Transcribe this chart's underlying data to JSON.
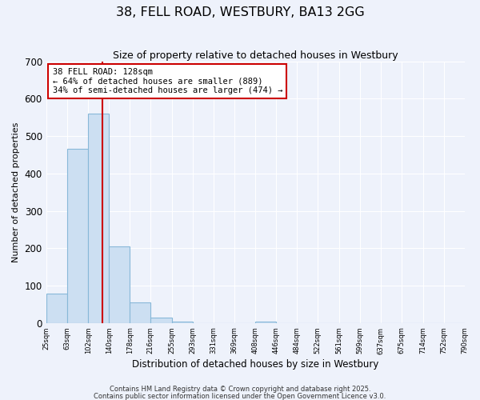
{
  "title": "38, FELL ROAD, WESTBURY, BA13 2GG",
  "subtitle": "Size of property relative to detached houses in Westbury",
  "xlabel": "Distribution of detached houses by size in Westbury",
  "ylabel": "Number of detached properties",
  "bar_edges": [
    25,
    63,
    102,
    140,
    178,
    216,
    255,
    293,
    331,
    369,
    408,
    446,
    484,
    522,
    561,
    599,
    637,
    675,
    714,
    752,
    790
  ],
  "bar_heights": [
    78,
    465,
    560,
    205,
    55,
    14,
    3,
    0,
    0,
    0,
    3,
    0,
    0,
    0,
    0,
    0,
    0,
    0,
    0,
    0
  ],
  "bar_color": "#ccdff2",
  "bar_edge_color": "#88b8d8",
  "property_line_x": 128,
  "property_line_color": "#cc0000",
  "annotation_line1": "38 FELL ROAD: 128sqm",
  "annotation_line2": "← 64% of detached houses are smaller (889)",
  "annotation_line3": "34% of semi-detached houses are larger (474) →",
  "annotation_box_color": "#ffffff",
  "annotation_box_edge": "#cc0000",
  "ylim": [
    0,
    700
  ],
  "yticks": [
    0,
    100,
    200,
    300,
    400,
    500,
    600,
    700
  ],
  "tick_labels": [
    "25sqm",
    "63sqm",
    "102sqm",
    "140sqm",
    "178sqm",
    "216sqm",
    "255sqm",
    "293sqm",
    "331sqm",
    "369sqm",
    "408sqm",
    "446sqm",
    "484sqm",
    "522sqm",
    "561sqm",
    "599sqm",
    "637sqm",
    "675sqm",
    "714sqm",
    "752sqm",
    "790sqm"
  ],
  "background_color": "#eef2fb",
  "grid_color": "#ffffff",
  "footer1": "Contains HM Land Registry data © Crown copyright and database right 2025.",
  "footer2": "Contains public sector information licensed under the Open Government Licence v3.0."
}
